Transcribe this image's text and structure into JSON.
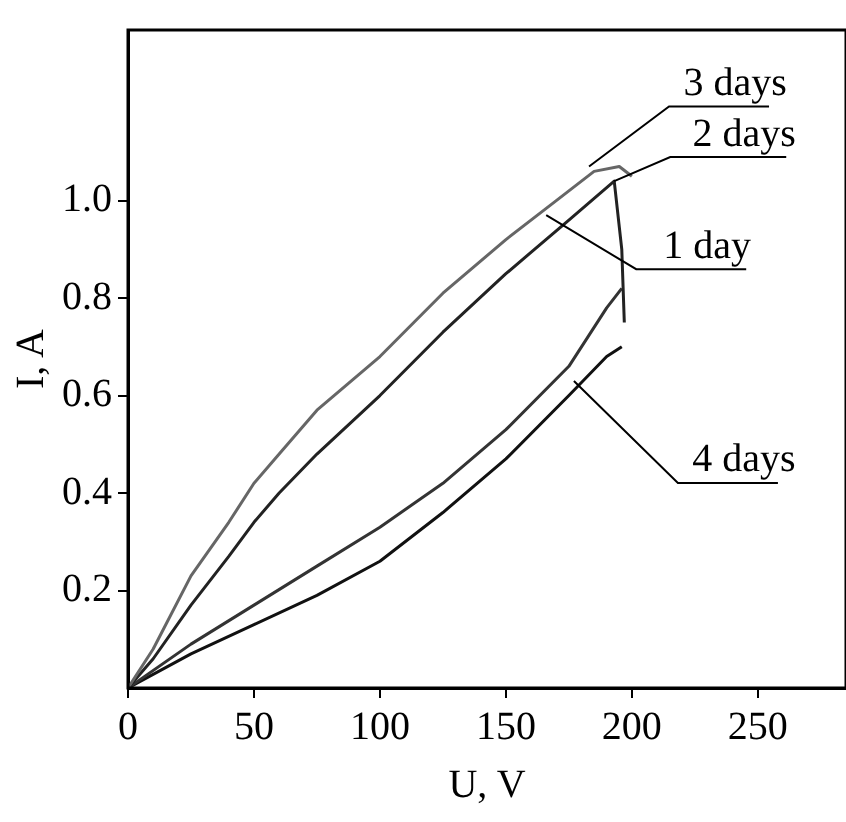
{
  "chart_data": {
    "type": "line",
    "xlabel": "U, V",
    "ylabel": "I, A",
    "xlim": [
      0,
      285
    ],
    "xticks": [
      0,
      50,
      100,
      150,
      200,
      250
    ],
    "ylim": [
      0,
      1.35
    ],
    "yticks": [
      {
        "value": 0.2,
        "label": "0.2"
      },
      {
        "value": 0.4,
        "label": "0.4"
      },
      {
        "value": 0.6,
        "label": "0.6"
      },
      {
        "value": 0.8,
        "label": "0.8"
      },
      {
        "value": 1,
        "label": "1.0"
      }
    ],
    "grid": false,
    "legend": false,
    "marker": "none",
    "line_style": "solid",
    "series": [
      {
        "color": "#666666",
        "x": [
          0,
          10,
          25,
          40,
          50,
          60,
          75,
          100,
          125,
          150,
          170,
          185,
          195,
          200
        ],
        "values": [
          0,
          0.08,
          0.23,
          0.34,
          0.42,
          0.48,
          0.57,
          0.68,
          0.81,
          0.92,
          1.0,
          1.06,
          1.07,
          1.05
        ]
      },
      {
        "color": "#222222",
        "x": [
          0,
          10,
          25,
          40,
          50,
          60,
          75,
          100,
          125,
          150,
          175,
          193,
          196,
          197
        ],
        "values": [
          0,
          0.06,
          0.17,
          0.27,
          0.34,
          0.4,
          0.48,
          0.6,
          0.73,
          0.85,
          0.96,
          1.04,
          0.9,
          0.75
        ]
      },
      {
        "color": "#333333",
        "x": [
          0,
          25,
          50,
          75,
          100,
          125,
          150,
          175,
          190,
          196
        ],
        "values": [
          0,
          0.09,
          0.17,
          0.25,
          0.33,
          0.42,
          0.53,
          0.66,
          0.78,
          0.82
        ]
      },
      {
        "color": "#111111",
        "x": [
          0,
          25,
          50,
          75,
          100,
          125,
          150,
          175,
          190,
          196
        ],
        "values": [
          0,
          0.07,
          0.13,
          0.19,
          0.26,
          0.36,
          0.47,
          0.6,
          0.68,
          0.7
        ]
      }
    ],
    "annotations": [
      {
        "text": "3 days",
        "x": 183,
        "y": 1.07
      },
      {
        "text": "2 days",
        "x": 193,
        "y": 1.04
      },
      {
        "text": "1 day",
        "x": 166,
        "y": 0.97
      },
      {
        "text": "4 days",
        "x": 177,
        "y": 0.63
      }
    ]
  }
}
